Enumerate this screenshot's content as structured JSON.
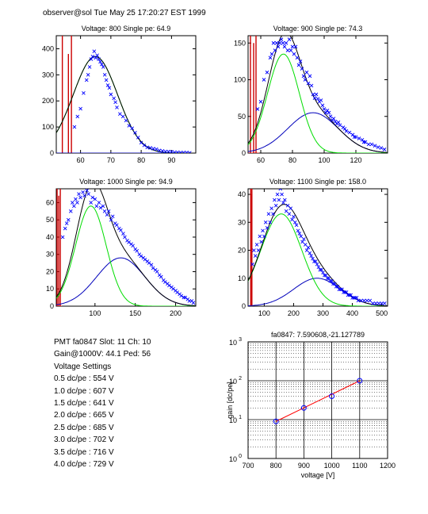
{
  "header": "observer@sol  Tue May 25 17:20:27 EST 1999",
  "info": {
    "lines": [
      "PMT fa0847 Slot: 11 Ch: 10",
      "Gain@1000V: 44.1 Ped: 56",
      "Voltage Settings",
      "0.5 dc/pe : 554 V",
      "1.0 dc/pe : 607 V",
      "1.5 dc/pe : 641 V",
      "2.0 dc/pe : 665 V",
      "2.5 dc/pe : 685 V",
      "3.0 dc/pe : 702 V",
      "3.5 dc/pe : 716 V",
      "4.0 dc/pe : 729 V"
    ]
  },
  "colors": {
    "data": "#0000ff",
    "total": "#000000",
    "single": "#00dd00",
    "double": "#0000bb",
    "pedestal": "#cc0000",
    "fit": "#ff0000",
    "grid": "#000000"
  },
  "chart_data": [
    {
      "type": "scatter",
      "title": "Voltage: 800 Single pe: 64.9",
      "xlim": [
        52,
        98
      ],
      "ylim": [
        0,
        450
      ],
      "xticks": [
        60,
        70,
        80,
        90
      ],
      "yticks": [
        0,
        100,
        200,
        300,
        400
      ],
      "pedestal": {
        "center": 56,
        "lines": [
          [
            54.0,
            450
          ],
          [
            56.0,
            380
          ],
          [
            57.0,
            450
          ]
        ]
      },
      "single_pe": {
        "mean": 64.9,
        "sigma": 7.3,
        "amp": 370
      },
      "double_pe": {
        "mean": 80,
        "sigma": 10,
        "amp": 0
      },
      "points": [
        [
          58,
          100
        ],
        [
          59,
          140
        ],
        [
          60,
          170
        ],
        [
          61,
          230
        ],
        [
          62,
          280
        ],
        [
          62.5,
          300
        ],
        [
          63,
          330
        ],
        [
          63.5,
          360
        ],
        [
          64,
          370
        ],
        [
          64.5,
          390
        ],
        [
          65,
          365
        ],
        [
          65.5,
          375
        ],
        [
          66,
          360
        ],
        [
          66.5,
          350
        ],
        [
          67,
          340
        ],
        [
          67.5,
          330
        ],
        [
          68,
          300
        ],
        [
          68.5,
          280
        ],
        [
          69,
          260
        ],
        [
          69.5,
          250
        ],
        [
          70,
          225
        ],
        [
          71,
          210
        ],
        [
          71.5,
          195
        ],
        [
          72,
          175
        ],
        [
          73,
          150
        ],
        [
          74,
          140
        ],
        [
          75,
          125
        ],
        [
          76,
          105
        ],
        [
          77,
          95
        ],
        [
          78,
          78
        ],
        [
          79,
          60
        ],
        [
          80,
          40
        ],
        [
          81,
          30
        ],
        [
          82,
          22
        ],
        [
          83,
          20
        ],
        [
          84,
          17
        ],
        [
          85,
          15
        ],
        [
          86,
          10
        ],
        [
          87,
          8
        ],
        [
          88,
          6
        ],
        [
          89,
          6
        ],
        [
          90,
          5
        ],
        [
          91,
          3
        ],
        [
          92,
          3
        ],
        [
          93,
          2
        ],
        [
          94,
          2
        ],
        [
          95,
          2
        ],
        [
          96,
          1
        ]
      ]
    },
    {
      "type": "scatter",
      "title": "Voltage: 900 Single pe: 74.3",
      "xlim": [
        52,
        140
      ],
      "ylim": [
        0,
        160
      ],
      "xticks": [
        60,
        80,
        100,
        120
      ],
      "yticks": [
        0,
        50,
        100,
        150
      ],
      "pedestal": {
        "center": 56,
        "lines": [
          [
            53.5,
            160
          ],
          [
            55.5,
            150
          ],
          [
            57.0,
            160
          ]
        ]
      },
      "single_pe": {
        "mean": 74.3,
        "sigma": 10,
        "amp": 135
      },
      "double_pe": {
        "mean": 93,
        "sigma": 16,
        "amp": 55
      },
      "points": [
        [
          58,
          60
        ],
        [
          60,
          70
        ],
        [
          62,
          100
        ],
        [
          64,
          110
        ],
        [
          66,
          130
        ],
        [
          67,
          135
        ],
        [
          68,
          150
        ],
        [
          69,
          140
        ],
        [
          70,
          150
        ],
        [
          71,
          145
        ],
        [
          72,
          150
        ],
        [
          73,
          155
        ],
        [
          74,
          150
        ],
        [
          75,
          145
        ],
        [
          76,
          150
        ],
        [
          77,
          140
        ],
        [
          78,
          155
        ],
        [
          79,
          140
        ],
        [
          80,
          145
        ],
        [
          81,
          135
        ],
        [
          82,
          145
        ],
        [
          83,
          130
        ],
        [
          84,
          120
        ],
        [
          85,
          125
        ],
        [
          86,
          115
        ],
        [
          87,
          105
        ],
        [
          88,
          100
        ],
        [
          89,
          110
        ],
        [
          90,
          95
        ],
        [
          91,
          105
        ],
        [
          92,
          92
        ],
        [
          93,
          80
        ],
        [
          94,
          75
        ],
        [
          95,
          80
        ],
        [
          96,
          74
        ],
        [
          97,
          70
        ],
        [
          98,
          72
        ],
        [
          99,
          65
        ],
        [
          100,
          60
        ],
        [
          101,
          55
        ],
        [
          102,
          58
        ],
        [
          103,
          55
        ],
        [
          104,
          50
        ],
        [
          105,
          45
        ],
        [
          106,
          47
        ],
        [
          107,
          43
        ],
        [
          108,
          40
        ],
        [
          109,
          42
        ],
        [
          110,
          38
        ],
        [
          112,
          35
        ],
        [
          113,
          33
        ],
        [
          114,
          30
        ],
        [
          116,
          28
        ],
        [
          118,
          25
        ],
        [
          119,
          22
        ],
        [
          120,
          22
        ],
        [
          122,
          20
        ],
        [
          124,
          18
        ],
        [
          125,
          15
        ],
        [
          126,
          15
        ],
        [
          128,
          12
        ],
        [
          130,
          12
        ],
        [
          132,
          10
        ],
        [
          134,
          8
        ],
        [
          136,
          7
        ],
        [
          138,
          5
        ]
      ]
    },
    {
      "type": "scatter",
      "title": "Voltage: 1000 Single pe: 94.9",
      "xlim": [
        52,
        225
      ],
      "ylim": [
        0,
        68
      ],
      "xticks": [
        100,
        150,
        200
      ],
      "yticks": [
        0,
        10,
        20,
        30,
        40,
        50,
        60
      ],
      "pedestal": {
        "center": 56,
        "lines": [
          [
            53.0,
            68
          ],
          [
            55.0,
            64
          ],
          [
            57.0,
            68
          ]
        ]
      },
      "single_pe": {
        "mean": 94.9,
        "sigma": 19,
        "amp": 58
      },
      "double_pe": {
        "mean": 132,
        "sigma": 30,
        "amp": 28
      },
      "points": [
        [
          60,
          40
        ],
        [
          63,
          45
        ],
        [
          65,
          48
        ],
        [
          67,
          50
        ],
        [
          70,
          55
        ],
        [
          72,
          60
        ],
        [
          74,
          58
        ],
        [
          76,
          62
        ],
        [
          78,
          60
        ],
        [
          80,
          65
        ],
        [
          82,
          63
        ],
        [
          85,
          66
        ],
        [
          87,
          64
        ],
        [
          90,
          67
        ],
        [
          92,
          65
        ],
        [
          95,
          60
        ],
        [
          97,
          63
        ],
        [
          100,
          62
        ],
        [
          102,
          58
        ],
        [
          105,
          60
        ],
        [
          107,
          57
        ],
        [
          110,
          58
        ],
        [
          112,
          55
        ],
        [
          115,
          53
        ],
        [
          117,
          55
        ],
        [
          120,
          50
        ],
        [
          122,
          52
        ],
        [
          125,
          48
        ],
        [
          127,
          47
        ],
        [
          130,
          45
        ],
        [
          132,
          44
        ],
        [
          135,
          42
        ],
        [
          137,
          40
        ],
        [
          140,
          38
        ],
        [
          142,
          37
        ],
        [
          145,
          36
        ],
        [
          147,
          35
        ],
        [
          150,
          33
        ],
        [
          152,
          32
        ],
        [
          155,
          30
        ],
        [
          157,
          29
        ],
        [
          160,
          28
        ],
        [
          162,
          27
        ],
        [
          165,
          26
        ],
        [
          167,
          25
        ],
        [
          170,
          24
        ],
        [
          172,
          22
        ],
        [
          175,
          21
        ],
        [
          177,
          20
        ],
        [
          180,
          18
        ],
        [
          182,
          17
        ],
        [
          185,
          15
        ],
        [
          187,
          14
        ],
        [
          190,
          13
        ],
        [
          192,
          12
        ],
        [
          195,
          11
        ],
        [
          197,
          10
        ],
        [
          200,
          9
        ],
        [
          202,
          8
        ],
        [
          205,
          7
        ],
        [
          207,
          6
        ],
        [
          210,
          5
        ],
        [
          212,
          5
        ],
        [
          215,
          4
        ],
        [
          217,
          3
        ],
        [
          220,
          3
        ],
        [
          222,
          2
        ]
      ]
    },
    {
      "type": "scatter",
      "title": "Voltage: 1100 Single pe: 158.0",
      "xlim": [
        45,
        520
      ],
      "ylim": [
        0,
        42
      ],
      "xticks": [
        100,
        200,
        300,
        400,
        500
      ],
      "yticks": [
        0,
        10,
        20,
        30,
        40
      ],
      "pedestal": {
        "center": 56,
        "lines": [
          [
            54.0,
            42
          ],
          [
            56.0,
            40
          ],
          [
            58.0,
            42
          ]
        ]
      },
      "single_pe": {
        "mean": 158.0,
        "sigma": 70,
        "amp": 33
      },
      "double_pe": {
        "mean": 280,
        "sigma": 80,
        "amp": 10
      },
      "points": [
        [
          60,
          15
        ],
        [
          65,
          20
        ],
        [
          70,
          18
        ],
        [
          75,
          22
        ],
        [
          80,
          20
        ],
        [
          85,
          25
        ],
        [
          90,
          23
        ],
        [
          95,
          27
        ],
        [
          100,
          25
        ],
        [
          105,
          30
        ],
        [
          110,
          28
        ],
        [
          115,
          33
        ],
        [
          120,
          30
        ],
        [
          125,
          35
        ],
        [
          130,
          33
        ],
        [
          135,
          38
        ],
        [
          140,
          36
        ],
        [
          145,
          40
        ],
        [
          150,
          38
        ],
        [
          155,
          42
        ],
        [
          160,
          40
        ],
        [
          165,
          37
        ],
        [
          170,
          38
        ],
        [
          175,
          34
        ],
        [
          180,
          36
        ],
        [
          185,
          33
        ],
        [
          190,
          35
        ],
        [
          195,
          31
        ],
        [
          200,
          32
        ],
        [
          205,
          30
        ],
        [
          210,
          29
        ],
        [
          215,
          27
        ],
        [
          220,
          26
        ],
        [
          225,
          25
        ],
        [
          230,
          23
        ],
        [
          235,
          24
        ],
        [
          240,
          22
        ],
        [
          245,
          20
        ],
        [
          250,
          21
        ],
        [
          255,
          19
        ],
        [
          260,
          18
        ],
        [
          265,
          17
        ],
        [
          270,
          16
        ],
        [
          275,
          16
        ],
        [
          280,
          15
        ],
        [
          285,
          14
        ],
        [
          290,
          13
        ],
        [
          295,
          13
        ],
        [
          300,
          12
        ],
        [
          305,
          11
        ],
        [
          310,
          11
        ],
        [
          315,
          10
        ],
        [
          320,
          10
        ],
        [
          325,
          9
        ],
        [
          330,
          9
        ],
        [
          335,
          8
        ],
        [
          340,
          8
        ],
        [
          345,
          7
        ],
        [
          350,
          7
        ],
        [
          355,
          6
        ],
        [
          360,
          6
        ],
        [
          365,
          6
        ],
        [
          370,
          5
        ],
        [
          375,
          5
        ],
        [
          380,
          5
        ],
        [
          385,
          4
        ],
        [
          390,
          4
        ],
        [
          395,
          4
        ],
        [
          400,
          3
        ],
        [
          405,
          3
        ],
        [
          410,
          3
        ],
        [
          415,
          3
        ],
        [
          420,
          2
        ],
        [
          430,
          2
        ],
        [
          440,
          2
        ],
        [
          450,
          2
        ],
        [
          460,
          2
        ],
        [
          470,
          1
        ],
        [
          480,
          1
        ],
        [
          490,
          1
        ],
        [
          500,
          1
        ],
        [
          510,
          1
        ]
      ]
    },
    {
      "type": "line",
      "title": "fa0847: 7.590608,-21.127789",
      "xlabel": "voltage [V]",
      "ylabel": "gain [dc/pe]",
      "xlim": [
        700,
        1200
      ],
      "ylim": [
        1,
        1000
      ],
      "yscale": "log",
      "grid": true,
      "xticks": [
        700,
        800,
        900,
        1000,
        1100,
        1200
      ],
      "yticks": [
        {
          "value": 1,
          "base": "10",
          "exp": "0"
        },
        {
          "value": 10,
          "base": "10",
          "exp": "1"
        },
        {
          "value": 100,
          "base": "10",
          "exp": "2"
        },
        {
          "value": 1000,
          "base": "10",
          "exp": "3"
        }
      ],
      "points": [
        [
          800,
          9.0
        ],
        [
          900,
          20.0
        ],
        [
          1000,
          40.0
        ],
        [
          1100,
          100.0
        ]
      ],
      "fit": [
        [
          800,
          9.0
        ],
        [
          1100,
          100.0
        ]
      ]
    }
  ]
}
